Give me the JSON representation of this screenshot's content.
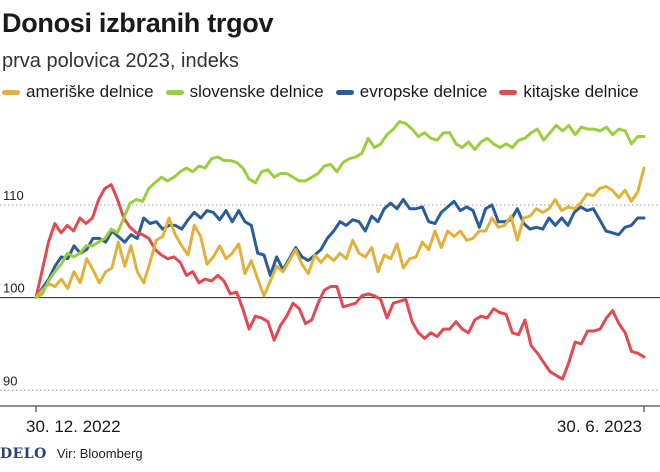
{
  "header": {
    "title": "Donosi izbranih trgov",
    "subtitle": "prva polovica 2023, indeks"
  },
  "footer": {
    "logo": "DELO",
    "source": "Vir: Bloomberg"
  },
  "chart_data": {
    "type": "line",
    "title": "Donosi izbranih trgov",
    "subtitle": "prva polovica 2023, indeks",
    "xlabel": "",
    "ylabel": "",
    "ylim": [
      88.3,
      120.8
    ],
    "yticks": [
      90,
      100,
      110
    ],
    "x_tick_labels": [
      "30. 12. 2022",
      "30. 6. 2023"
    ],
    "x_range": [
      "2022-12-30",
      "2023-06-30"
    ],
    "legend_position": "top",
    "grid": "horizontal dotted",
    "series": [
      {
        "name": "ameriške delnice",
        "color": "#e2b13c",
        "values": [
          100.0,
          100.8,
          101.5,
          101.2,
          102.0,
          101.0,
          102.8,
          101.6,
          104.2,
          103.0,
          101.6,
          102.8,
          103.2,
          106.0,
          103.4,
          105.6,
          102.8,
          101.6,
          103.8,
          106.2,
          106.6,
          108.6,
          106.8,
          105.6,
          104.6,
          107.8,
          106.6,
          103.6,
          104.4,
          105.6,
          104.2,
          104.8,
          105.8,
          102.6,
          104.0,
          102.0,
          100.2,
          101.8,
          103.4,
          102.8,
          104.0,
          105.2,
          103.6,
          102.6,
          104.6,
          103.8,
          104.6,
          104.0,
          104.8,
          104.2,
          106.2,
          104.8,
          104.4,
          105.4,
          102.8,
          104.6,
          104.2,
          105.8,
          103.2,
          104.2,
          104.4,
          106.0,
          105.2,
          107.2,
          105.4,
          107.2,
          106.6,
          107.2,
          106.2,
          106.4,
          107.2,
          107.2,
          108.6,
          107.6,
          107.8,
          108.8,
          106.2,
          108.6,
          108.8,
          109.6,
          109.2,
          109.6,
          110.6,
          109.4,
          109.8,
          109.6,
          110.2,
          111.2,
          111.0,
          111.8,
          112.0,
          111.6,
          110.8,
          111.6,
          110.4,
          111.4,
          114.0
        ]
      },
      {
        "name": "slovenske delnice",
        "color": "#9acd3f",
        "values": [
          100.0,
          100.4,
          101.8,
          102.8,
          103.6,
          104.8,
          104.4,
          104.8,
          105.6,
          105.6,
          106.0,
          106.4,
          107.4,
          107.0,
          108.6,
          110.2,
          110.6,
          110.4,
          111.8,
          112.4,
          113.0,
          112.6,
          113.0,
          113.6,
          114.0,
          113.6,
          114.2,
          114.0,
          115.0,
          115.2,
          114.8,
          114.8,
          114.6,
          114.0,
          112.8,
          112.4,
          113.6,
          113.8,
          113.0,
          113.4,
          113.4,
          113.0,
          112.6,
          112.6,
          113.0,
          113.4,
          114.2,
          114.4,
          113.6,
          114.6,
          115.0,
          115.2,
          115.6,
          117.2,
          116.2,
          116.6,
          117.6,
          118.2,
          119.0,
          118.8,
          118.2,
          117.4,
          117.8,
          117.2,
          117.0,
          117.8,
          117.8,
          116.6,
          116.2,
          116.8,
          116.0,
          116.8,
          117.2,
          116.6,
          116.2,
          116.6,
          116.2,
          117.0,
          117.2,
          117.8,
          118.2,
          117.0,
          117.8,
          118.6,
          118.0,
          118.6,
          117.6,
          118.4,
          118.2,
          118.2,
          118.0,
          118.4,
          117.6,
          118.2,
          118.0,
          116.6,
          117.4,
          117.4
        ]
      },
      {
        "name": "evropske delnice",
        "color": "#2a5c99",
        "values": [
          100.0,
          101.0,
          102.0,
          103.4,
          104.4,
          104.2,
          105.6,
          104.8,
          105.2,
          106.4,
          106.4,
          106.0,
          107.2,
          106.6,
          106.0,
          106.8,
          106.4,
          108.6,
          108.0,
          108.2,
          107.4,
          107.8,
          107.8,
          107.4,
          108.4,
          109.2,
          108.6,
          109.4,
          109.2,
          108.4,
          109.4,
          108.2,
          109.4,
          108.2,
          107.8,
          104.8,
          104.6,
          102.4,
          104.4,
          103.0,
          104.2,
          105.4,
          104.4,
          104.0,
          104.6,
          105.2,
          106.4,
          107.2,
          108.2,
          107.8,
          108.4,
          108.2,
          107.2,
          108.8,
          108.2,
          109.6,
          110.2,
          109.6,
          110.6,
          109.6,
          109.6,
          109.8,
          108.2,
          108.0,
          109.2,
          109.8,
          110.4,
          109.4,
          109.8,
          109.4,
          107.6,
          109.6,
          110.0,
          108.2,
          108.2,
          108.4,
          109.6,
          108.0,
          107.4,
          107.6,
          107.4,
          108.6,
          107.8,
          108.6,
          107.8,
          109.2,
          109.8,
          109.4,
          109.6,
          108.4,
          107.2,
          107.0,
          106.8,
          107.6,
          107.8,
          108.6,
          108.6
        ]
      },
      {
        "name": "kitajske delnice",
        "color": "#e04a52",
        "values": [
          100.0,
          103.0,
          106.0,
          108.0,
          107.0,
          107.8,
          107.2,
          108.6,
          108.0,
          108.6,
          110.6,
          111.8,
          112.2,
          110.6,
          108.6,
          107.6,
          107.0,
          106.8,
          106.4,
          105.2,
          104.6,
          104.2,
          104.4,
          103.8,
          102.4,
          102.8,
          101.6,
          102.0,
          101.8,
          102.4,
          101.8,
          100.4,
          100.6,
          98.8,
          96.6,
          98.0,
          97.8,
          97.4,
          95.4,
          97.0,
          98.0,
          99.4,
          98.8,
          97.2,
          97.6,
          99.4,
          100.8,
          101.2,
          101.2,
          99.0,
          99.2,
          99.4,
          100.2,
          100.4,
          100.2,
          99.8,
          97.8,
          99.4,
          99.6,
          99.8,
          97.4,
          96.2,
          95.6,
          96.2,
          95.8,
          96.6,
          96.6,
          97.4,
          96.6,
          96.2,
          97.6,
          98.0,
          97.8,
          98.8,
          98.4,
          98.2,
          96.2,
          96.0,
          97.6,
          94.8,
          94.0,
          93.0,
          92.0,
          91.6,
          91.2,
          93.0,
          95.2,
          95.0,
          96.4,
          96.4,
          96.6,
          97.8,
          98.6,
          97.2,
          96.2,
          94.2,
          94.0,
          93.6
        ]
      }
    ]
  }
}
